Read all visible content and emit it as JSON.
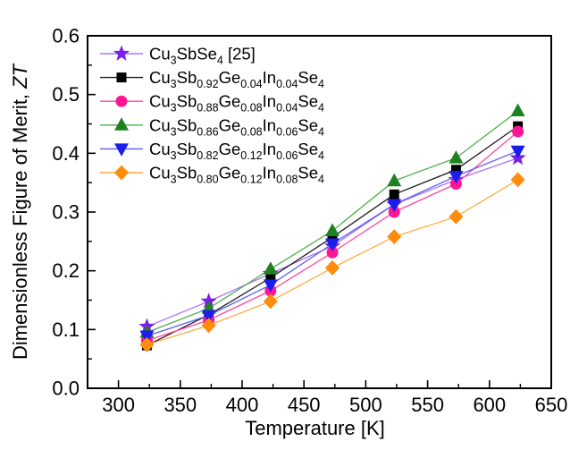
{
  "figure": {
    "background": "#FFFFFF",
    "axis_color": "#000000"
  },
  "chart_data": {
    "type": "line",
    "title": "",
    "xlabel": "Temperature [K]",
    "ylabel": "Dimensionless Figure of Merit, ZT",
    "ylabel_segments": [
      {
        "t": "Dimensionless Figure of Merit, "
      },
      {
        "i": "ZT"
      }
    ],
    "xlim": [
      275,
      650
    ],
    "ylim": [
      0.0,
      0.6
    ],
    "x_major_ticks": [
      300,
      350,
      400,
      450,
      500,
      550,
      600,
      650
    ],
    "x_minor_ticks": [
      325,
      375,
      425,
      475,
      525,
      575,
      625
    ],
    "y_major_ticks": [
      0.0,
      0.1,
      0.2,
      0.3,
      0.4,
      0.5,
      0.6
    ],
    "y_minor_ticks": [
      0.05,
      0.15,
      0.25,
      0.35,
      0.45,
      0.55
    ],
    "grid": false,
    "legend_position": "top-left",
    "x": [
      323,
      373,
      423,
      473,
      523,
      573,
      623
    ],
    "series": [
      {
        "name": "Cu3SbSe4 [25]",
        "label_segments": [
          {
            "t": "Cu"
          },
          {
            "s": "3"
          },
          {
            "t": "SbSe"
          },
          {
            "s": "4"
          },
          {
            "t": " [25]"
          }
        ],
        "marker": "star",
        "marker_color": "#7A1FE8",
        "line_color": "#A875FF",
        "values": [
          0.105,
          0.148,
          0.195,
          0.242,
          0.313,
          0.355,
          0.392
        ]
      },
      {
        "name": "Cu3Sb0.92Ge0.04In0.04Se4",
        "label_segments": [
          {
            "t": "Cu"
          },
          {
            "s": "3"
          },
          {
            "t": "Sb"
          },
          {
            "s": "0.92"
          },
          {
            "t": "Ge"
          },
          {
            "s": "0.04"
          },
          {
            "t": "In"
          },
          {
            "s": "0.04"
          },
          {
            "t": "Se"
          },
          {
            "s": "4"
          }
        ],
        "marker": "square",
        "marker_color": "#000000",
        "line_color": "#1A1A1A",
        "values": [
          0.073,
          0.125,
          0.188,
          0.257,
          0.33,
          0.372,
          0.446
        ]
      },
      {
        "name": "Cu3Sb0.88Ge0.08In0.04Se4",
        "label_segments": [
          {
            "t": "Cu"
          },
          {
            "s": "3"
          },
          {
            "t": "Sb"
          },
          {
            "s": "0.88"
          },
          {
            "t": "Ge"
          },
          {
            "s": "0.08"
          },
          {
            "t": "In"
          },
          {
            "s": "0.04"
          },
          {
            "t": "Se"
          },
          {
            "s": "4"
          }
        ],
        "marker": "circle",
        "marker_color": "#FF1493",
        "line_color": "#FF47A3",
        "values": [
          0.081,
          0.116,
          0.166,
          0.231,
          0.3,
          0.348,
          0.437
        ]
      },
      {
        "name": "Cu3Sb0.86Ge0.08In0.06Se4",
        "label_segments": [
          {
            "t": "Cu"
          },
          {
            "s": "3"
          },
          {
            "t": "Sb"
          },
          {
            "s": "0.86"
          },
          {
            "t": "Ge"
          },
          {
            "s": "0.08"
          },
          {
            "t": "In"
          },
          {
            "s": "0.06"
          },
          {
            "t": "Se"
          },
          {
            "s": "4"
          }
        ],
        "marker": "triangle-up",
        "marker_color": "#1E8220",
        "line_color": "#4CAE4C",
        "values": [
          0.095,
          0.136,
          0.203,
          0.268,
          0.353,
          0.392,
          0.472
        ]
      },
      {
        "name": "Cu3Sb0.82Ge0.12In0.06Se4",
        "label_segments": [
          {
            "t": "Cu"
          },
          {
            "s": "3"
          },
          {
            "t": "Sb"
          },
          {
            "s": "0.82"
          },
          {
            "t": "Ge"
          },
          {
            "s": "0.12"
          },
          {
            "t": "In"
          },
          {
            "s": "0.06"
          },
          {
            "t": "Se"
          },
          {
            "s": "4"
          }
        ],
        "marker": "triangle-down",
        "marker_color": "#1C1CEB",
        "line_color": "#5E5EF5",
        "values": [
          0.089,
          0.124,
          0.176,
          0.246,
          0.313,
          0.361,
          0.404
        ]
      },
      {
        "name": "Cu3Sb0.80Ge0.12In0.08Se4",
        "label_segments": [
          {
            "t": "Cu"
          },
          {
            "s": "3"
          },
          {
            "t": "Sb"
          },
          {
            "s": "0.80"
          },
          {
            "t": "Ge"
          },
          {
            "s": "0.12"
          },
          {
            "t": "In"
          },
          {
            "s": "0.08"
          },
          {
            "t": "Se"
          },
          {
            "s": "4"
          }
        ],
        "marker": "diamond",
        "marker_color": "#FF8C0C",
        "line_color": "#FFAB40",
        "values": [
          0.074,
          0.107,
          0.148,
          0.205,
          0.258,
          0.292,
          0.355
        ]
      }
    ]
  }
}
